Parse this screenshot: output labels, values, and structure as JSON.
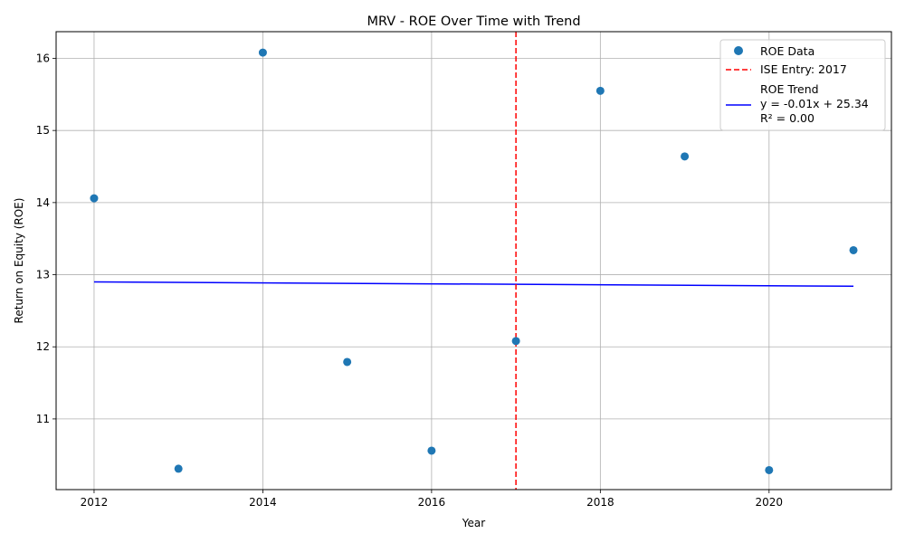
{
  "chart_data": {
    "type": "scatter",
    "title": "MRV - ROE Over Time with Trend",
    "xlabel": "Year",
    "ylabel": "Return on Equity (ROE)",
    "xlim": [
      2011.55,
      2021.45
    ],
    "ylim": [
      10.02,
      16.37
    ],
    "x_ticks": [
      2012,
      2014,
      2016,
      2018,
      2020
    ],
    "y_ticks": [
      11,
      12,
      13,
      14,
      15,
      16
    ],
    "grid": true,
    "legend_position": "top-right",
    "series": [
      {
        "name": "ROE Data",
        "color": "#1f77b4",
        "points": [
          {
            "x": 2012,
            "y": 14.06
          },
          {
            "x": 2013,
            "y": 10.31
          },
          {
            "x": 2014,
            "y": 16.08
          },
          {
            "x": 2015,
            "y": 11.79
          },
          {
            "x": 2016,
            "y": 10.56
          },
          {
            "x": 2017,
            "y": 12.08
          },
          {
            "x": 2018,
            "y": 15.55
          },
          {
            "x": 2019,
            "y": 14.64
          },
          {
            "x": 2020,
            "y": 10.29
          },
          {
            "x": 2021,
            "y": 13.34
          }
        ]
      }
    ],
    "vline": {
      "x": 2017,
      "label": "ISE Entry: 2017",
      "color": "#ff0000",
      "style": "dashed"
    },
    "trend": {
      "name": "ROE Trend",
      "equation": "y = -0.01x + 25.34",
      "r2": "R² = 0.00",
      "x_start": 2012,
      "y_start": 12.9,
      "x_end": 2021,
      "y_end": 12.84,
      "color": "#0000ff"
    }
  }
}
